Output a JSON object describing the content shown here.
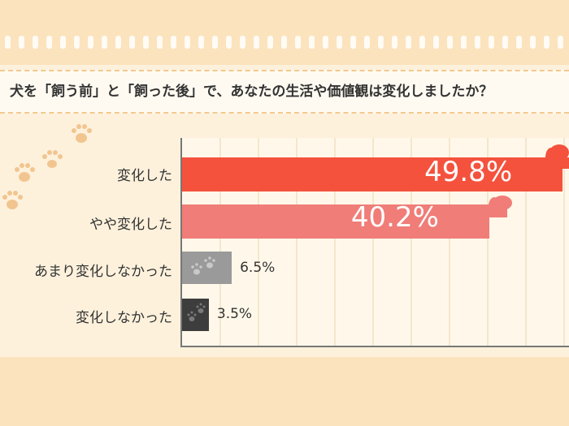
{
  "question": "犬を「飼う前」と「飼った後」で、あなたの生活や価値観は変化しましたか？",
  "chart_data": {
    "type": "bar",
    "orientation": "horizontal",
    "categories": [
      "変化した",
      "やや変化した",
      "あまり変化しなかった",
      "変化しなかった"
    ],
    "values": [
      49.8,
      40.2,
      6.5,
      3.5
    ],
    "value_labels": [
      "49.8%",
      "40.2%",
      "6.5%",
      "3.5%"
    ],
    "colors": [
      "#f4523d",
      "#f07d78",
      "#9a9a9a",
      "#3d3d3d"
    ],
    "xlim": [
      0,
      50
    ],
    "grid": true
  }
}
